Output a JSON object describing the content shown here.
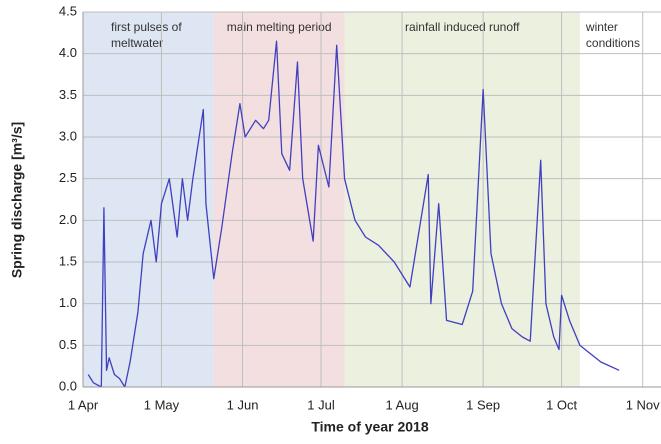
{
  "chart_data": {
    "type": "line",
    "xlabel": "Time of year 2018",
    "ylabel": "Spring discharge [m³/s]",
    "xlim": [
      "2018-04-01",
      "2018-11-08"
    ],
    "ylim": [
      0,
      4.5
    ],
    "xticks": [
      {
        "value": "2018-04-01",
        "label": "1 Apr"
      },
      {
        "value": "2018-05-01",
        "label": "1 May"
      },
      {
        "value": "2018-06-01",
        "label": "1 Jun"
      },
      {
        "value": "2018-07-01",
        "label": "1 Jul"
      },
      {
        "value": "2018-08-01",
        "label": "1 Aug"
      },
      {
        "value": "2018-09-01",
        "label": "1 Sep"
      },
      {
        "value": "2018-10-01",
        "label": "1 Oct"
      },
      {
        "value": "2018-11-01",
        "label": "1 Nov"
      }
    ],
    "yticks": [
      {
        "value": 0,
        "label": "0.0"
      },
      0.5,
      {
        "value": 1,
        "label": "1.0"
      },
      1.5,
      {
        "value": 2,
        "label": "2.0"
      },
      2.5,
      {
        "value": 3,
        "label": "3.0"
      },
      3.5,
      {
        "value": 4,
        "label": "4.0"
      },
      4.5
    ],
    "grid": true,
    "regions": [
      {
        "start": "2018-04-01",
        "end": "2018-05-21",
        "color": "#dde6f2",
        "label": [
          "first pulses of",
          "meltwater"
        ]
      },
      {
        "start": "2018-05-21",
        "end": "2018-07-10",
        "color": "#f4dfe0",
        "label": [
          "main melting period"
        ]
      },
      {
        "start": "2018-07-10",
        "end": "2018-10-08",
        "color": "#ebf0df",
        "label": [
          "rainfall induced runoff"
        ]
      },
      {
        "start": "2018-10-08",
        "end": "2018-11-08",
        "color": "#ffffff",
        "label": [
          "winter",
          "conditions"
        ]
      }
    ],
    "x": [
      "2018-04-03",
      "2018-04-05",
      "2018-04-08",
      "2018-04-09",
      "2018-04-10",
      "2018-04-11",
      "2018-04-13",
      "2018-04-15",
      "2018-04-17",
      "2018-04-19",
      "2018-04-22",
      "2018-04-24",
      "2018-04-27",
      "2018-04-29",
      "2018-05-01",
      "2018-05-04",
      "2018-05-07",
      "2018-05-09",
      "2018-05-11",
      "2018-05-13",
      "2018-05-17",
      "2018-05-18",
      "2018-05-21",
      "2018-05-24",
      "2018-05-28",
      "2018-05-31",
      "2018-06-02",
      "2018-06-06",
      "2018-06-09",
      "2018-06-11",
      "2018-06-14",
      "2018-06-16",
      "2018-06-19",
      "2018-06-22",
      "2018-06-24",
      "2018-06-28",
      "2018-06-30",
      "2018-07-04",
      "2018-07-07",
      "2018-07-10",
      "2018-07-14",
      "2018-07-18",
      "2018-07-23",
      "2018-07-29",
      "2018-08-04",
      "2018-08-11",
      "2018-08-12",
      "2018-08-15",
      "2018-08-18",
      "2018-08-24",
      "2018-08-28",
      "2018-09-01",
      "2018-09-04",
      "2018-09-08",
      "2018-09-12",
      "2018-09-16",
      "2018-09-19",
      "2018-09-23",
      "2018-09-25",
      "2018-09-28",
      "2018-09-30",
      "2018-10-01",
      "2018-10-04",
      "2018-10-08",
      "2018-10-16",
      "2018-10-23"
    ],
    "series": [
      {
        "name": "Spring discharge",
        "color": "#4040c0",
        "values": [
          0.15,
          0.05,
          0.0,
          2.15,
          0.2,
          0.35,
          0.15,
          0.1,
          0.0,
          0.3,
          0.9,
          1.6,
          2.0,
          1.5,
          2.2,
          2.5,
          1.8,
          2.5,
          2.0,
          2.5,
          3.33,
          2.2,
          1.3,
          1.9,
          2.8,
          3.4,
          3.0,
          3.2,
          3.1,
          3.2,
          4.15,
          2.8,
          2.6,
          3.9,
          2.5,
          1.75,
          2.9,
          2.4,
          4.1,
          2.5,
          2.0,
          1.8,
          1.7,
          1.5,
          1.2,
          2.55,
          1.0,
          2.2,
          0.8,
          0.75,
          1.15,
          3.57,
          1.6,
          1.0,
          0.7,
          0.6,
          0.55,
          2.72,
          1.0,
          0.6,
          0.45,
          1.1,
          0.8,
          0.5,
          0.3,
          0.2
        ]
      }
    ]
  }
}
